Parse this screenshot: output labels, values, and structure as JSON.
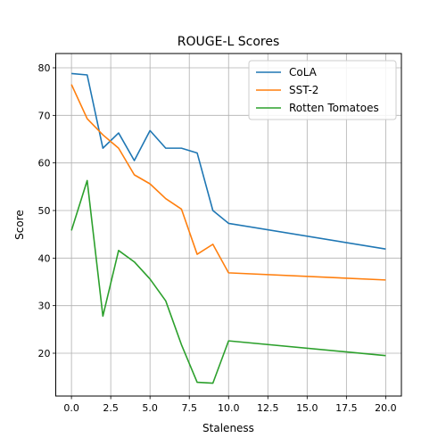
{
  "chart_data": {
    "type": "line",
    "title": "ROUGE-L Scores",
    "xlabel": "Staleness",
    "ylabel": "Score",
    "xlim": [
      -1.0,
      21.0
    ],
    "ylim": [
      11.0,
      83.0
    ],
    "xticks": [
      0.0,
      2.5,
      5.0,
      7.5,
      10.0,
      12.5,
      15.0,
      17.5,
      20.0
    ],
    "xtick_labels": [
      "0.0",
      "2.5",
      "5.0",
      "7.5",
      "10.0",
      "12.5",
      "15.0",
      "17.5",
      "20.0"
    ],
    "yticks": [
      20,
      30,
      40,
      50,
      60,
      70,
      80
    ],
    "ytick_labels": [
      "20",
      "30",
      "40",
      "50",
      "60",
      "70",
      "80"
    ],
    "grid": true,
    "legend_position": "top-right",
    "x": [
      0,
      1,
      2,
      3,
      4,
      5,
      6,
      7,
      8,
      9,
      10,
      20
    ],
    "series": [
      {
        "name": "CoLA",
        "color": "#1f77b4",
        "values": [
          78.8,
          78.5,
          63.1,
          66.3,
          60.5,
          66.8,
          63.1,
          63.1,
          62.1,
          50.0,
          47.3,
          41.9
        ]
      },
      {
        "name": "SST-2",
        "color": "#ff7f0e",
        "values": [
          76.5,
          69.3,
          65.9,
          63.1,
          57.5,
          55.6,
          52.5,
          50.3,
          40.8,
          42.9,
          36.9,
          35.4
        ]
      },
      {
        "name": "Rotten Tomatoes",
        "color": "#2ca02c",
        "values": [
          45.8,
          56.3,
          27.8,
          41.6,
          39.2,
          35.6,
          31.0,
          21.8,
          13.9,
          13.7,
          22.6,
          19.5
        ]
      }
    ]
  }
}
